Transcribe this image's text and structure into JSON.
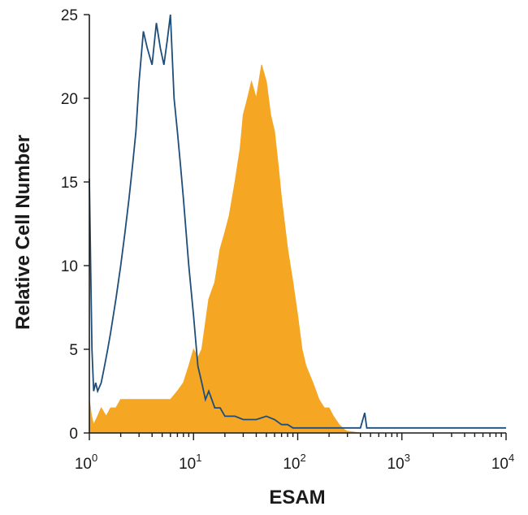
{
  "chart_data": {
    "type": "area",
    "title": "",
    "xlabel": "ESAM",
    "ylabel": "Relative Cell Number",
    "xscale": "log",
    "xlim": [
      1,
      10000
    ],
    "ylim": [
      0,
      25
    ],
    "grid": false,
    "legend": "none",
    "x_ticks": [
      {
        "value": 1,
        "base": "10",
        "exp": "0"
      },
      {
        "value": 10,
        "base": "10",
        "exp": "1"
      },
      {
        "value": 100,
        "base": "10",
        "exp": "2"
      },
      {
        "value": 1000,
        "base": "10",
        "exp": "3"
      },
      {
        "value": 10000,
        "base": "10",
        "exp": "4"
      }
    ],
    "y_ticks": [
      {
        "value": 0,
        "label": "0"
      },
      {
        "value": 5,
        "label": "5"
      },
      {
        "value": 10,
        "label": "10"
      },
      {
        "value": 15,
        "label": "15"
      },
      {
        "value": 20,
        "label": "20"
      },
      {
        "value": 25,
        "label": "25"
      }
    ],
    "series": [
      {
        "style": "filled",
        "color": "#f5a623",
        "x": [
          1,
          1.05,
          1.1,
          1.2,
          1.3,
          1.45,
          1.6,
          1.8,
          2,
          2.3,
          2.6,
          3,
          3.5,
          4,
          4.5,
          5,
          6,
          7,
          8,
          9,
          10,
          11,
          12,
          14,
          16,
          18,
          20,
          22,
          25,
          28,
          30,
          33,
          36,
          40,
          45,
          50,
          55,
          60,
          65,
          70,
          80,
          90,
          100,
          110,
          120,
          140,
          160,
          180,
          200,
          220,
          250,
          280,
          300,
          400,
          500,
          1000,
          5000,
          10000
        ],
        "values": [
          2,
          1,
          0.5,
          1,
          1.5,
          1,
          1.5,
          1.5,
          2,
          2,
          2,
          2,
          2,
          2,
          2,
          2,
          2,
          2.5,
          3,
          4,
          5,
          4.5,
          5,
          8,
          9,
          11,
          12,
          13,
          15,
          17,
          19,
          20,
          21,
          20,
          22,
          21,
          19,
          18,
          16,
          14,
          11,
          9,
          7,
          5,
          4,
          3,
          2,
          1.5,
          1.5,
          1,
          0.5,
          0.2,
          0.1,
          0,
          0,
          0,
          0,
          0
        ]
      },
      {
        "style": "line",
        "color": "#1e4d7a",
        "x": [
          1,
          1.03,
          1.06,
          1.1,
          1.15,
          1.2,
          1.3,
          1.4,
          1.5,
          1.6,
          1.8,
          2,
          2.2,
          2.4,
          2.6,
          2.8,
          3,
          3.3,
          3.6,
          4,
          4.4,
          4.8,
          5.2,
          5.6,
          6,
          6.5,
          7,
          7.5,
          8,
          9,
          10,
          11,
          12,
          13,
          14,
          16,
          18,
          20,
          25,
          30,
          40,
          50,
          60,
          70,
          80,
          90,
          100,
          120,
          150,
          200,
          300,
          400,
          440,
          460,
          500,
          1000,
          5000,
          10000
        ],
        "values": [
          15.2,
          10,
          5,
          2.5,
          3,
          2.5,
          3,
          4,
          5,
          6,
          8,
          10,
          12,
          14,
          16,
          18,
          21,
          24,
          23,
          22,
          24.5,
          23,
          22,
          23.5,
          25,
          20,
          18,
          16,
          14,
          10,
          7,
          4,
          3,
          2,
          2.5,
          1.5,
          1.5,
          1,
          1,
          0.8,
          0.8,
          1,
          0.8,
          0.5,
          0.5,
          0.3,
          0.3,
          0.3,
          0.3,
          0.3,
          0.3,
          0.3,
          1.2,
          0.3,
          0.3,
          0.3,
          0.3,
          0.3
        ]
      }
    ]
  }
}
